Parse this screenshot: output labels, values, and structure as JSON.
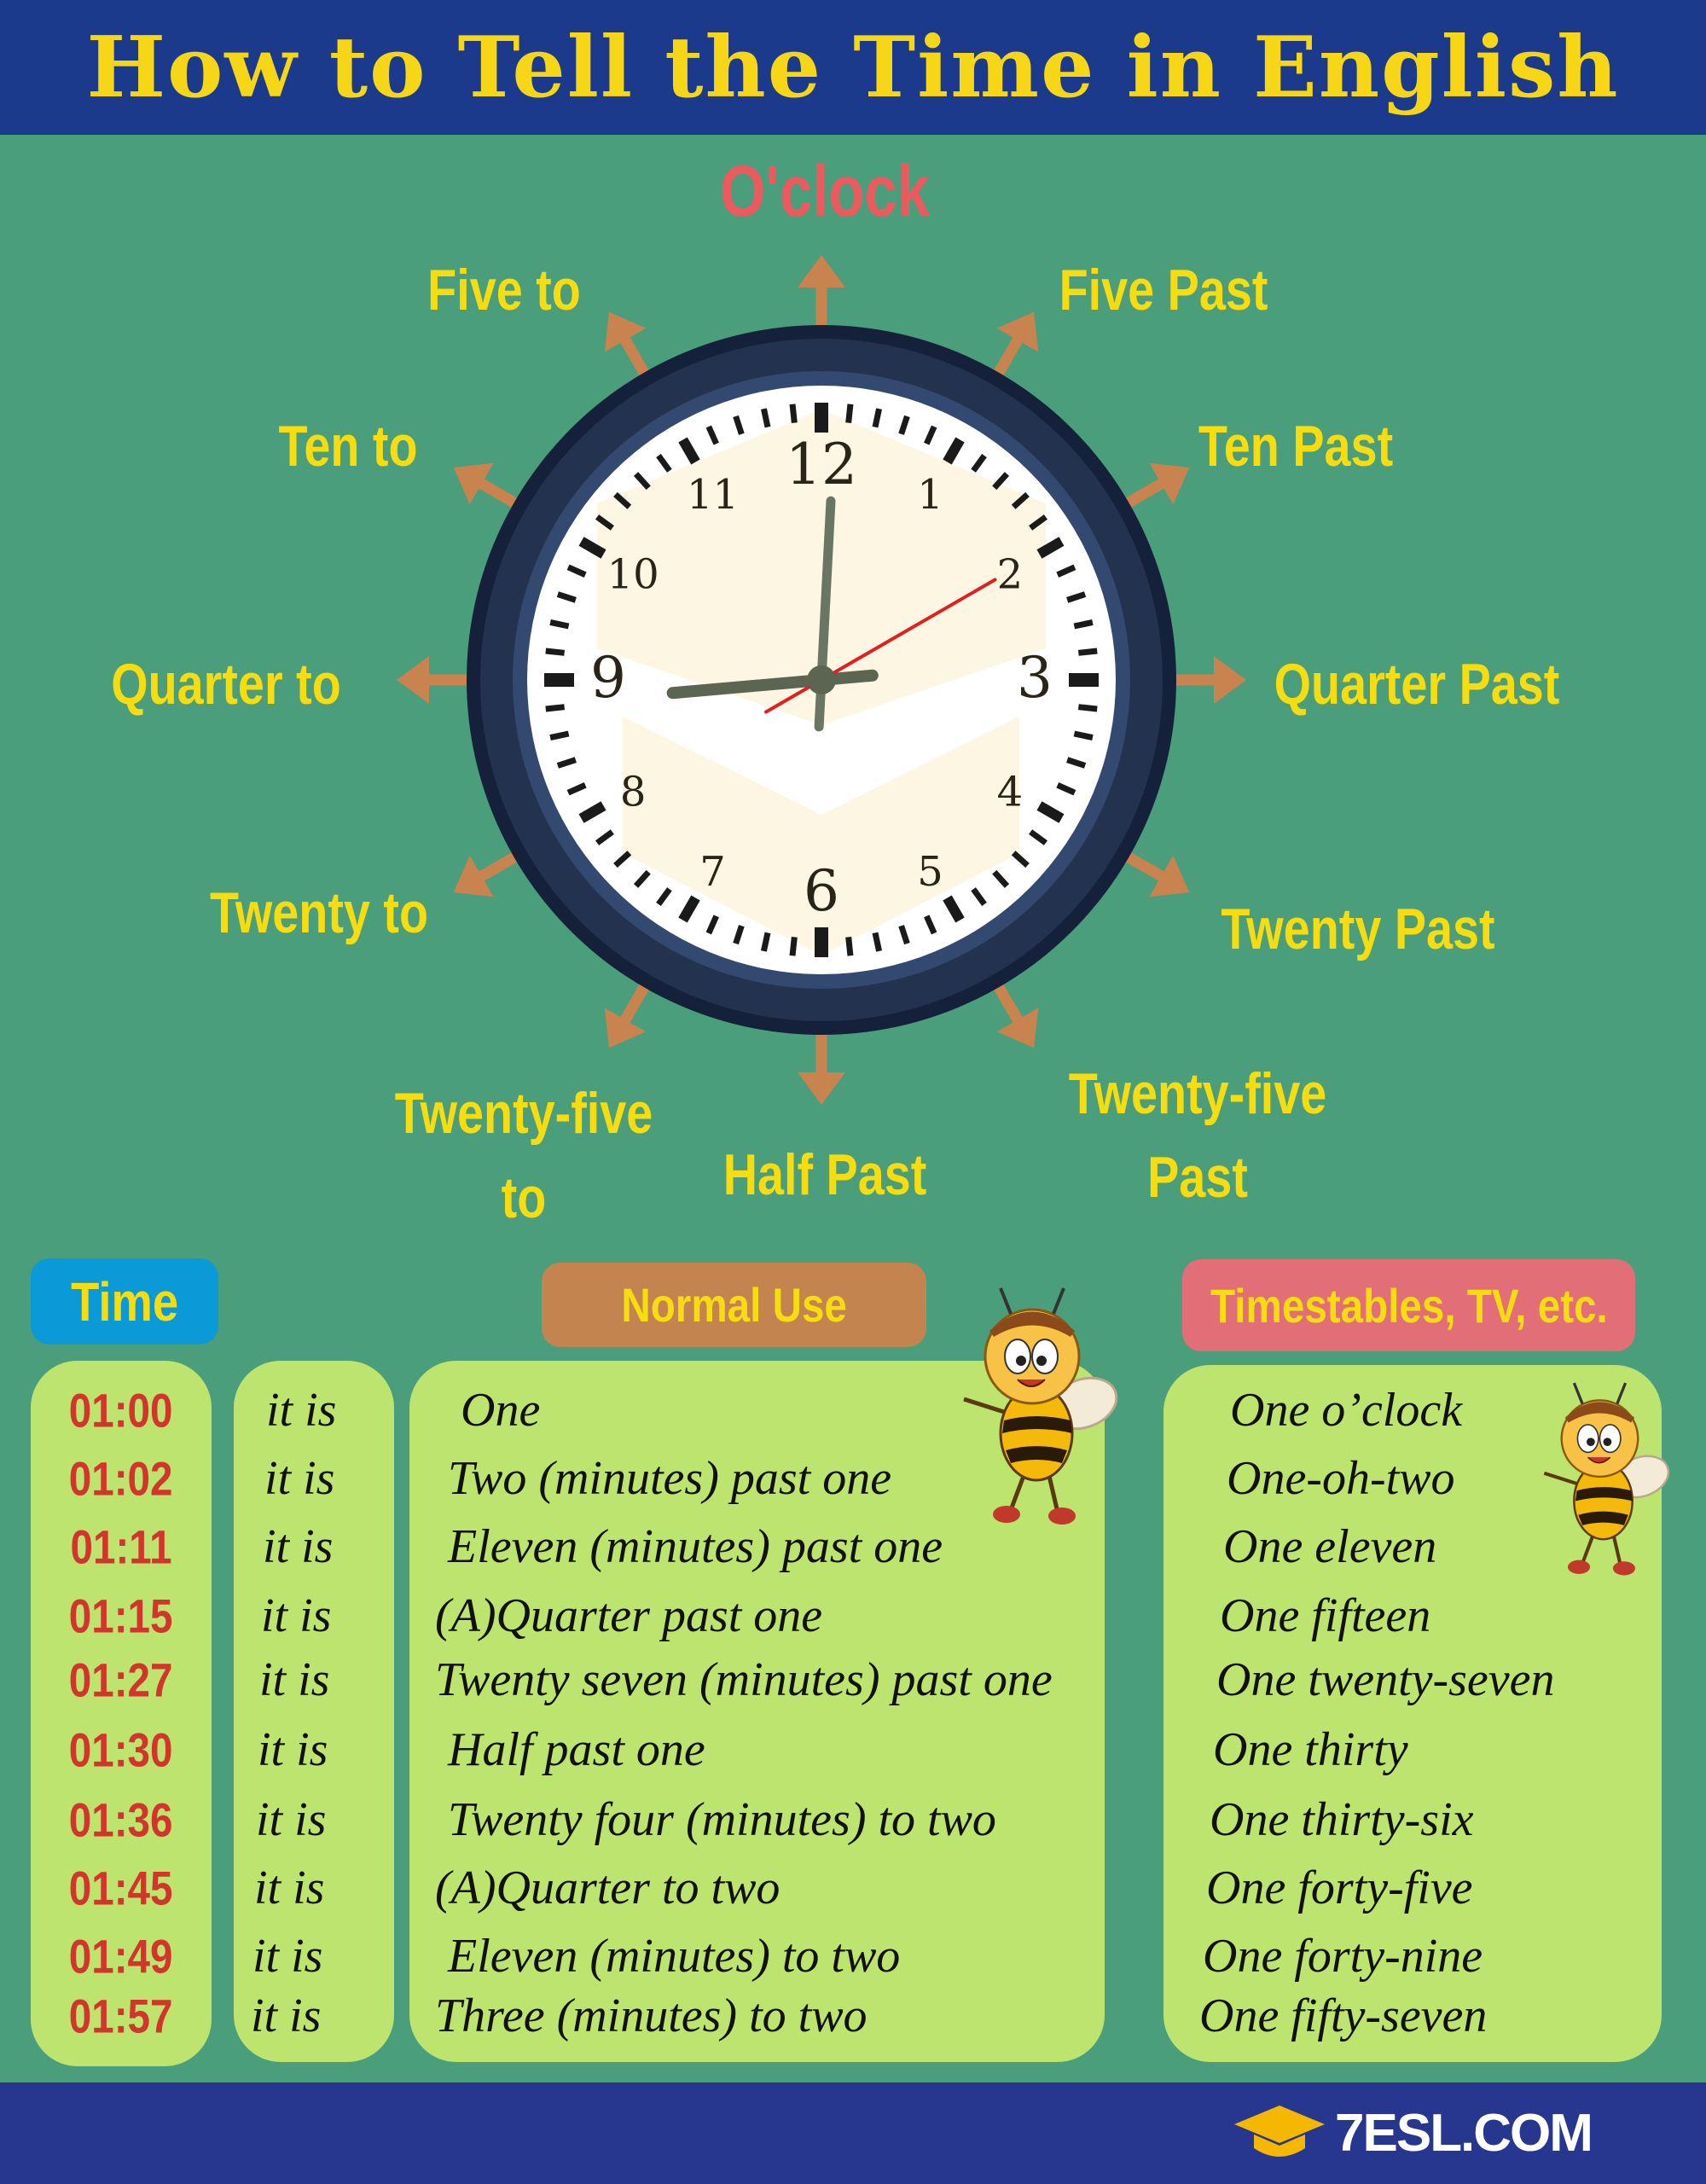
{
  "header": {
    "title": "How to Tell the Time in English"
  },
  "clock": {
    "top_label": "O'clock",
    "labels": {
      "five_to": "Five to",
      "five_past": "Five Past",
      "ten_to": "Ten to",
      "ten_past": "Ten Past",
      "quarter_to": "Quarter to",
      "quarter_past": "Quarter Past",
      "twenty_to": "Twenty to",
      "twenty_past": "Twenty Past",
      "twenty_five_to_1": "Twenty-five",
      "twenty_five_to_2": "to",
      "half_past": "Half Past",
      "twenty_five_past_1": "Twenty-five",
      "twenty_five_past_2": "Past"
    },
    "numbers": [
      "12",
      "1",
      "2",
      "3",
      "4",
      "5",
      "6",
      "7",
      "8",
      "9",
      "10",
      "11"
    ],
    "time_shown": {
      "hour": 9,
      "minute": 0,
      "second": 5
    },
    "colors": {
      "arrow": "#c8834f",
      "bezel": "#22324f",
      "face": "#fdf6e3",
      "second_hand": "#e02020",
      "hands": "#6b7563"
    }
  },
  "table": {
    "headers": {
      "time": "Time",
      "normal": "Normal Use",
      "timetables": "Timestables, TV, etc."
    },
    "rows": [
      {
        "time": "01:00",
        "it": "it is",
        "normal": "One",
        "formal": "One o’clock"
      },
      {
        "time": "01:02",
        "it": "it is",
        "normal": "Two (minutes) past one",
        "formal": "One-oh-two"
      },
      {
        "time": "01:11",
        "it": "it is",
        "normal": "Eleven (minutes) past one",
        "formal": "One eleven"
      },
      {
        "time": "01:15",
        "it": "it is",
        "normal": "(A)Quarter past one",
        "formal": "One fifteen"
      },
      {
        "time": "01:27",
        "it": "it is",
        "normal": "Twenty seven (minutes) past one",
        "formal": "One twenty-seven"
      },
      {
        "time": "01:30",
        "it": "it is",
        "normal": "Half past one",
        "formal": "One thirty"
      },
      {
        "time": "01:36",
        "it": "it is",
        "normal": "Twenty four (minutes) to two",
        "formal": "One thirty-six"
      },
      {
        "time": "01:45",
        "it": "it is",
        "normal": "(A)Quarter to two",
        "formal": "One forty-five"
      },
      {
        "time": "01:49",
        "it": "it is",
        "normal": "Eleven (minutes) to two",
        "formal": "One forty-nine"
      },
      {
        "time": "01:57",
        "it": "it is",
        "normal": "Three (minutes) to two",
        "formal": "One fifty-seven"
      }
    ]
  },
  "footer": {
    "logo": "7ESL.COM"
  }
}
